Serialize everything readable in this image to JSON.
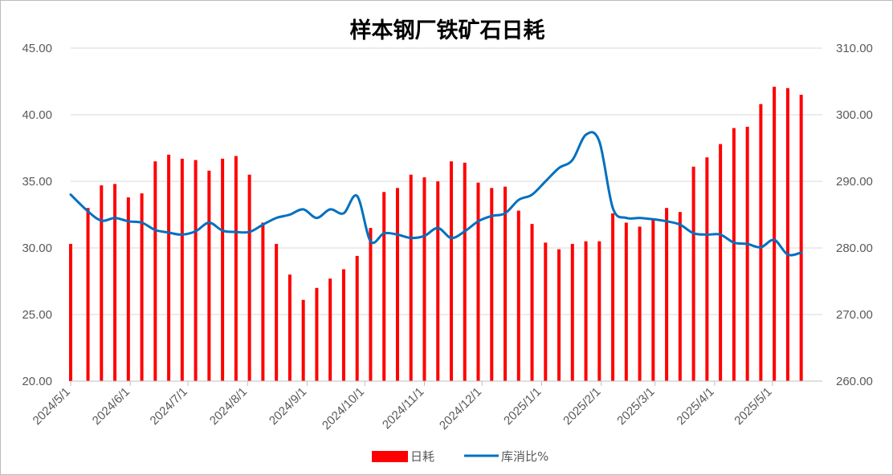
{
  "chart_data": {
    "type": "bar+line",
    "title": "样本钢厂铁矿石日耗",
    "left_axis": {
      "range": [
        20,
        45
      ],
      "ticks": [
        "20.00",
        "25.00",
        "30.00",
        "35.00",
        "40.00",
        "45.00"
      ]
    },
    "right_axis": {
      "range": [
        260,
        310
      ],
      "ticks": [
        "260.00",
        "270.00",
        "280.00",
        "290.00",
        "300.00",
        "310.00"
      ]
    },
    "x_axis": {
      "range": [
        "2024-05-01",
        "2025-05-27"
      ],
      "tick_labels": [
        "2024/5/1",
        "2024/6/1",
        "2024/7/1",
        "2024/8/1",
        "2024/9/1",
        "2024/10/1",
        "2024/11/1",
        "2024/12/1",
        "2025/1/1",
        "2025/2/1",
        "2025/3/1",
        "2025/4/1",
        "2025/5/1"
      ]
    },
    "grid": "horizontal",
    "legend_position": "bottom",
    "series": [
      {
        "name": "日耗",
        "axis": "left",
        "kind": "bar",
        "color": "#ff0000",
        "points": [
          [
            "2024-05-01",
            30.3
          ],
          [
            "2024-05-10",
            33.0
          ],
          [
            "2024-05-17",
            34.7
          ],
          [
            "2024-05-24",
            34.8
          ],
          [
            "2024-05-31",
            33.8
          ],
          [
            "2024-06-07",
            34.1
          ],
          [
            "2024-06-14",
            36.5
          ],
          [
            "2024-06-21",
            37.0
          ],
          [
            "2024-06-28",
            36.7
          ],
          [
            "2024-07-05",
            36.6
          ],
          [
            "2024-07-12",
            35.8
          ],
          [
            "2024-07-19",
            36.7
          ],
          [
            "2024-07-26",
            36.9
          ],
          [
            "2024-08-02",
            35.5
          ],
          [
            "2024-08-09",
            31.9
          ],
          [
            "2024-08-16",
            30.3
          ],
          [
            "2024-08-23",
            28.0
          ],
          [
            "2024-08-30",
            26.1
          ],
          [
            "2024-09-06",
            27.0
          ],
          [
            "2024-09-13",
            27.7
          ],
          [
            "2024-09-20",
            28.4
          ],
          [
            "2024-09-27",
            29.4
          ],
          [
            "2024-10-04",
            31.5
          ],
          [
            "2024-10-11",
            34.2
          ],
          [
            "2024-10-18",
            34.5
          ],
          [
            "2024-10-25",
            35.5
          ],
          [
            "2024-11-01",
            35.3
          ],
          [
            "2024-11-08",
            35.0
          ],
          [
            "2024-11-15",
            36.5
          ],
          [
            "2024-11-22",
            36.4
          ],
          [
            "2024-11-29",
            34.9
          ],
          [
            "2024-12-06",
            34.5
          ],
          [
            "2024-12-13",
            34.6
          ],
          [
            "2024-12-20",
            32.8
          ],
          [
            "2024-12-27",
            31.8
          ],
          [
            "2025-01-03",
            30.4
          ],
          [
            "2025-01-10",
            29.9
          ],
          [
            "2025-01-17",
            30.3
          ],
          [
            "2025-01-24",
            30.5
          ],
          [
            "2025-01-31",
            30.5
          ],
          [
            "2025-02-07",
            32.6
          ],
          [
            "2025-02-14",
            31.9
          ],
          [
            "2025-02-21",
            31.6
          ],
          [
            "2025-02-28",
            32.1
          ],
          [
            "2025-03-07",
            33.0
          ],
          [
            "2025-03-14",
            32.7
          ],
          [
            "2025-03-21",
            36.1
          ],
          [
            "2025-03-28",
            36.8
          ],
          [
            "2025-04-04",
            37.8
          ],
          [
            "2025-04-11",
            39.0
          ],
          [
            "2025-04-18",
            39.1
          ],
          [
            "2025-04-25",
            40.8
          ],
          [
            "2025-05-02",
            42.1
          ],
          [
            "2025-05-09",
            42.0
          ],
          [
            "2025-05-16",
            41.5
          ]
        ]
      },
      {
        "name": "库消比%",
        "axis": "right",
        "kind": "line",
        "color": "#0070c0",
        "points": [
          [
            "2024-05-01",
            288.0
          ],
          [
            "2024-05-10",
            285.5
          ],
          [
            "2024-05-17",
            284.1
          ],
          [
            "2024-05-24",
            284.5
          ],
          [
            "2024-05-31",
            284.0
          ],
          [
            "2024-06-07",
            283.8
          ],
          [
            "2024-06-14",
            282.7
          ],
          [
            "2024-06-21",
            282.3
          ],
          [
            "2024-06-28",
            282.0
          ],
          [
            "2024-07-05",
            282.5
          ],
          [
            "2024-07-12",
            283.8
          ],
          [
            "2024-07-19",
            282.6
          ],
          [
            "2024-07-26",
            282.4
          ],
          [
            "2024-08-02",
            282.4
          ],
          [
            "2024-08-09",
            283.5
          ],
          [
            "2024-08-16",
            284.5
          ],
          [
            "2024-08-23",
            285.0
          ],
          [
            "2024-08-30",
            285.8
          ],
          [
            "2024-09-06",
            284.5
          ],
          [
            "2024-09-13",
            285.8
          ],
          [
            "2024-09-20",
            285.2
          ],
          [
            "2024-09-27",
            287.8
          ],
          [
            "2024-10-04",
            281.0
          ],
          [
            "2024-10-11",
            282.2
          ],
          [
            "2024-10-18",
            282.0
          ],
          [
            "2024-10-25",
            281.5
          ],
          [
            "2024-11-01",
            281.8
          ],
          [
            "2024-11-08",
            283.0
          ],
          [
            "2024-11-15",
            281.5
          ],
          [
            "2024-11-22",
            282.5
          ],
          [
            "2024-11-29",
            284.0
          ],
          [
            "2024-12-06",
            284.8
          ],
          [
            "2024-12-13",
            285.2
          ],
          [
            "2024-12-20",
            287.2
          ],
          [
            "2024-12-27",
            288.0
          ],
          [
            "2025-01-03",
            290.0
          ],
          [
            "2025-01-10",
            292.0
          ],
          [
            "2025-01-17",
            293.2
          ],
          [
            "2025-01-24",
            297.0
          ],
          [
            "2025-01-31",
            296.0
          ],
          [
            "2025-02-07",
            286.0
          ],
          [
            "2025-02-14",
            284.5
          ],
          [
            "2025-02-21",
            284.5
          ],
          [
            "2025-02-28",
            284.3
          ],
          [
            "2025-03-07",
            284.0
          ],
          [
            "2025-03-14",
            283.5
          ],
          [
            "2025-03-21",
            282.2
          ],
          [
            "2025-03-28",
            282.0
          ],
          [
            "2025-04-04",
            282.0
          ],
          [
            "2025-04-11",
            280.8
          ],
          [
            "2025-04-18",
            280.6
          ],
          [
            "2025-04-25",
            280.1
          ],
          [
            "2025-05-02",
            281.2
          ],
          [
            "2025-05-09",
            279.0
          ],
          [
            "2025-05-16",
            279.3
          ]
        ]
      }
    ]
  }
}
